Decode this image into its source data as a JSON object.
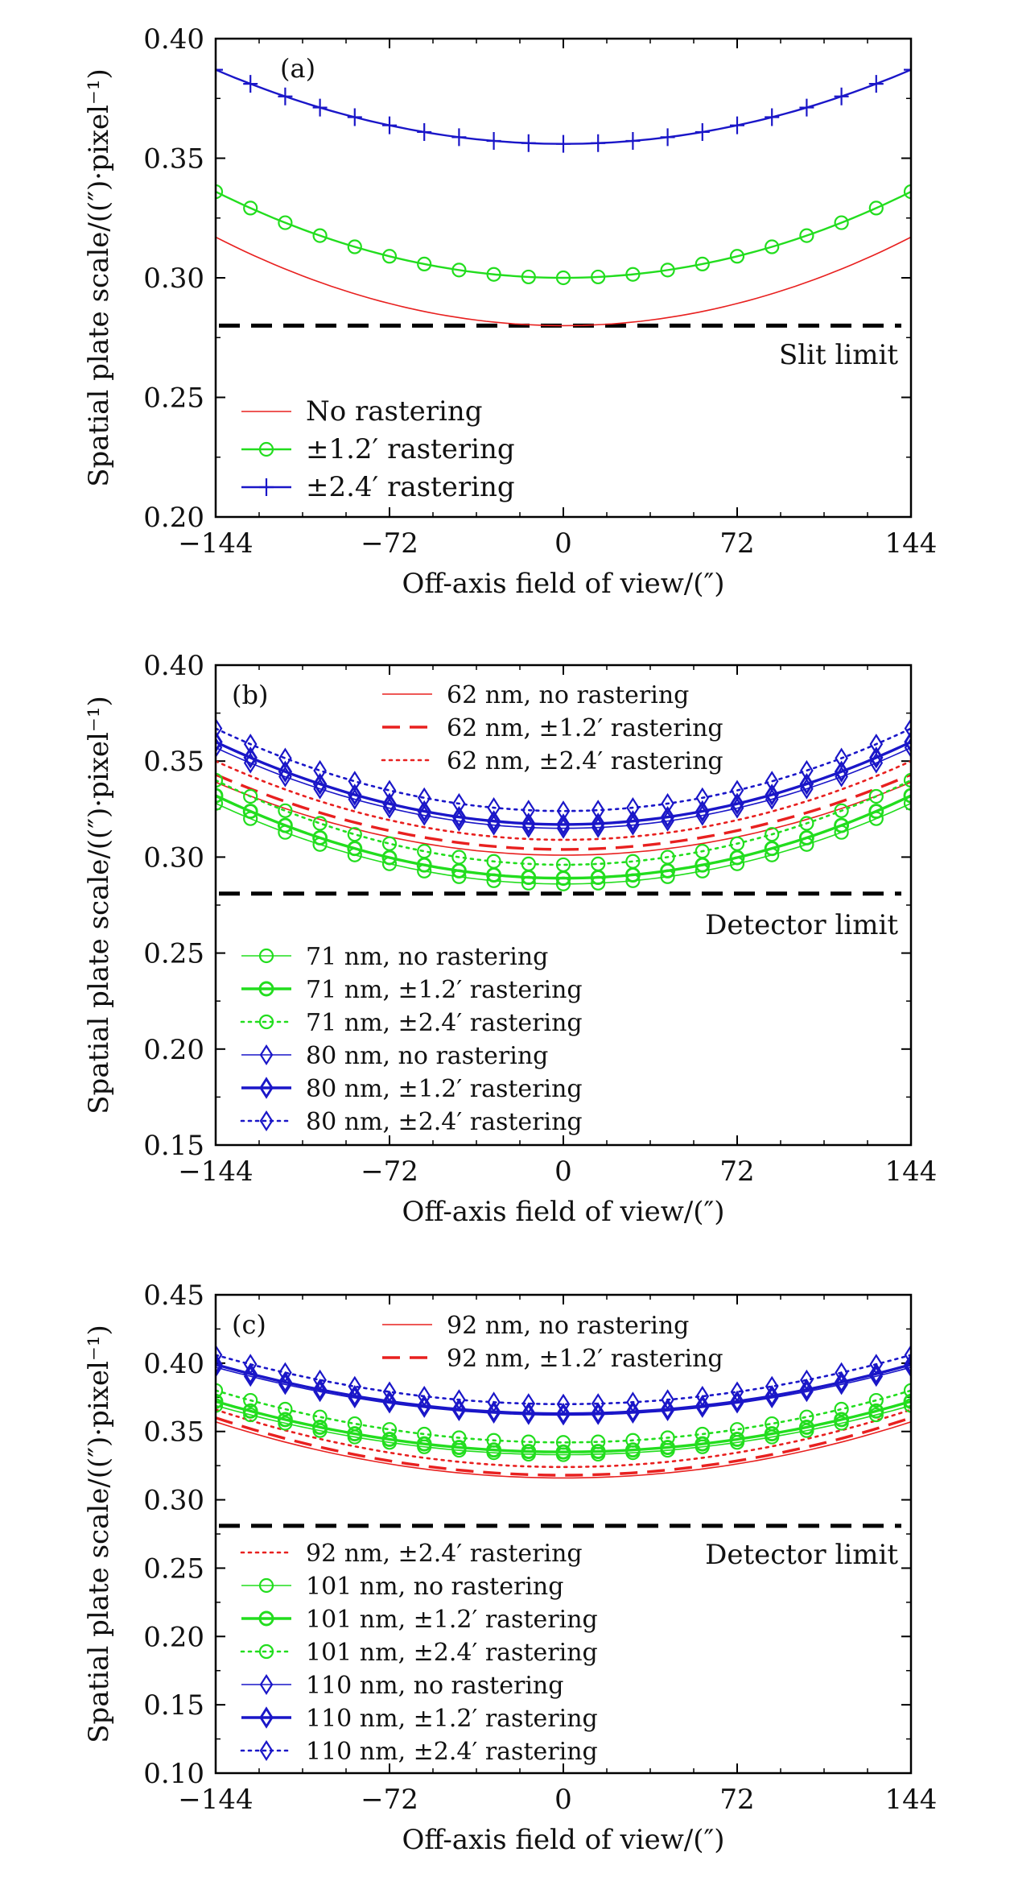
{
  "figure": {
    "xlabel": "Off-axis field of view/(″)",
    "ylabel": "Spatial plate scale/((″)·pixel⁻¹)",
    "xticks": [
      "−144",
      "−72",
      "0",
      "72",
      "144"
    ],
    "colors": {
      "red": "#e8201f",
      "green": "#22dd1e",
      "blue": "#1a16c8",
      "black": "#000000"
    }
  },
  "chart_data": [
    {
      "type": "line",
      "panel": "(a)",
      "xlim": [
        -144,
        144
      ],
      "ylim": [
        0.2,
        0.4
      ],
      "yticks": [
        "0.20",
        "0.25",
        "0.30",
        "0.35",
        "0.40"
      ],
      "limit": {
        "label": "Slit limit",
        "value": 0.28
      },
      "series": [
        {
          "name": "No rastering",
          "color": "red",
          "style": "solid",
          "width": 1.6,
          "marker": "none",
          "center": 0.28,
          "edge": 0.317
        },
        {
          "name": "±1.2′ rastering",
          "color": "green",
          "style": "solid",
          "width": 2.4,
          "marker": "circle",
          "center": 0.3,
          "edge": 0.336
        },
        {
          "name": "±2.4′ rastering",
          "color": "blue",
          "style": "solid",
          "width": 2.4,
          "marker": "plus",
          "center": 0.356,
          "edge": 0.387
        }
      ],
      "legend_position": "lower-left"
    },
    {
      "type": "line",
      "panel": "(b)",
      "xlim": [
        -144,
        144
      ],
      "ylim": [
        0.15,
        0.4
      ],
      "yticks": [
        "0.15",
        "0.20",
        "0.25",
        "0.30",
        "0.35",
        "0.40"
      ],
      "limit": {
        "label": "Detector limit",
        "value": 0.281
      },
      "series": [
        {
          "name": "62 nm, no rastering",
          "color": "red",
          "style": "solid",
          "width": 1.6,
          "marker": "none",
          "center": 0.301,
          "edge": 0.339
        },
        {
          "name": "62 nm, ±1.2′ rastering",
          "color": "red",
          "style": "dashed",
          "width": 3.4,
          "marker": "none",
          "center": 0.304,
          "edge": 0.343
        },
        {
          "name": "62 nm, ±2.4′ rastering",
          "color": "red",
          "style": "dotted",
          "width": 2.6,
          "marker": "none",
          "center": 0.309,
          "edge": 0.35
        },
        {
          "name": "71 nm, no rastering",
          "color": "green",
          "style": "solid",
          "width": 1.6,
          "marker": "circle",
          "center": 0.286,
          "edge": 0.328
        },
        {
          "name": "71 nm, ±1.2′ rastering",
          "color": "green",
          "style": "solid",
          "width": 3.4,
          "marker": "circle",
          "center": 0.289,
          "edge": 0.332
        },
        {
          "name": "71 nm, ±2.4′ rastering",
          "color": "green",
          "style": "dotted",
          "width": 2.6,
          "marker": "circle",
          "center": 0.296,
          "edge": 0.34
        },
        {
          "name": "80 nm, no rastering",
          "color": "blue",
          "style": "solid",
          "width": 1.6,
          "marker": "diamond",
          "center": 0.315,
          "edge": 0.357
        },
        {
          "name": "80 nm, ±1.2′ rastering",
          "color": "blue",
          "style": "solid",
          "width": 3.4,
          "marker": "diamond",
          "center": 0.317,
          "edge": 0.36
        },
        {
          "name": "80 nm, ±2.4′ rastering",
          "color": "blue",
          "style": "dotted",
          "width": 2.6,
          "marker": "diamond",
          "center": 0.324,
          "edge": 0.367
        }
      ],
      "legend_position": "top-center and lower-left"
    },
    {
      "type": "line",
      "panel": "(c)",
      "xlim": [
        -144,
        144
      ],
      "ylim": [
        0.1,
        0.45
      ],
      "yticks": [
        "0.10",
        "0.15",
        "0.20",
        "0.25",
        "0.30",
        "0.35",
        "0.40",
        "0.45"
      ],
      "limit": {
        "label": "Detector limit",
        "value": 0.281
      },
      "series": [
        {
          "name": "92 nm, no rastering",
          "color": "red",
          "style": "solid",
          "width": 1.6,
          "marker": "none",
          "center": 0.316,
          "edge": 0.357
        },
        {
          "name": "92 nm, ±1.2′ rastering",
          "color": "red",
          "style": "dashed",
          "width": 3.4,
          "marker": "none",
          "center": 0.318,
          "edge": 0.36
        },
        {
          "name": "92 nm, ±2.4′ rastering",
          "color": "red",
          "style": "dotted",
          "width": 2.6,
          "marker": "none",
          "center": 0.324,
          "edge": 0.366
        },
        {
          "name": "101 nm, no rastering",
          "color": "green",
          "style": "solid",
          "width": 1.6,
          "marker": "circle",
          "center": 0.333,
          "edge": 0.369
        },
        {
          "name": "101 nm, ±1.2′ rastering",
          "color": "green",
          "style": "solid",
          "width": 3.4,
          "marker": "circle",
          "center": 0.335,
          "edge": 0.372
        },
        {
          "name": "101 nm, ±2.4′ rastering",
          "color": "green",
          "style": "dotted",
          "width": 2.6,
          "marker": "circle",
          "center": 0.342,
          "edge": 0.38
        },
        {
          "name": "110 nm, no rastering",
          "color": "blue",
          "style": "solid",
          "width": 1.6,
          "marker": "diamond",
          "center": 0.362,
          "edge": 0.397
        },
        {
          "name": "110 nm, ±1.2′ rastering",
          "color": "blue",
          "style": "solid",
          "width": 3.4,
          "marker": "diamond",
          "center": 0.363,
          "edge": 0.399
        },
        {
          "name": "110 nm, ±2.4′ rastering",
          "color": "blue",
          "style": "dotted",
          "width": 2.6,
          "marker": "diamond",
          "center": 0.37,
          "edge": 0.406
        }
      ],
      "legend_position": "top-center and lower-left"
    }
  ]
}
